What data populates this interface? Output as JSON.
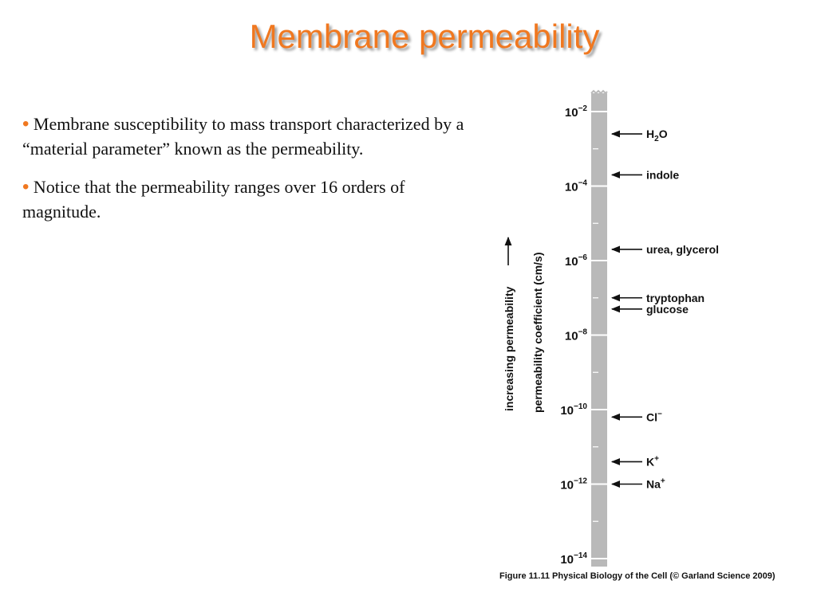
{
  "title": "Membrane permeability",
  "bullets": [
    "Membrane susceptibility to mass transport characterized by a “material parameter” known as the permeability.",
    "Notice that the permeability ranges over 16 orders of magnitude."
  ],
  "figure": {
    "outer_label": "increasing permeability",
    "axis_label": "permeability coefficient (cm/s)",
    "ticks": [
      {
        "exp": -2,
        "base": "10",
        "sup": "−2"
      },
      {
        "exp": -4,
        "base": "10",
        "sup": "−4"
      },
      {
        "exp": -6,
        "base": "10",
        "sup": "−6"
      },
      {
        "exp": -8,
        "base": "10",
        "sup": "−8"
      },
      {
        "exp": -10,
        "base": "10",
        "sup": "−10"
      },
      {
        "exp": -12,
        "base": "10",
        "sup": "−12"
      },
      {
        "exp": -14,
        "base": "10",
        "sup": "−14"
      }
    ],
    "molecules": [
      {
        "name": "H",
        "sub": "2",
        "after": "O",
        "sup": "",
        "log_value": -2.6
      },
      {
        "name": "indole",
        "sub": "",
        "after": "",
        "sup": "",
        "log_value": -3.7
      },
      {
        "name": "urea, glycerol",
        "sub": "",
        "after": "",
        "sup": "",
        "log_value": -5.7
      },
      {
        "name": "tryptophan",
        "sub": "",
        "after": "",
        "sup": "",
        "log_value": -7.0
      },
      {
        "name": "glucose",
        "sub": "",
        "after": "",
        "sup": "",
        "log_value": -7.3
      },
      {
        "name": "Cl",
        "sub": "",
        "after": "",
        "sup": "−",
        "log_value": -10.2
      },
      {
        "name": "K",
        "sub": "",
        "after": "",
        "sup": "+",
        "log_value": -11.4
      },
      {
        "name": "Na",
        "sub": "",
        "after": "",
        "sup": "+",
        "log_value": -12.0
      }
    ],
    "caption": "Figure 11.11  Physical Biology of the Cell (© Garland Science 2009)"
  }
}
